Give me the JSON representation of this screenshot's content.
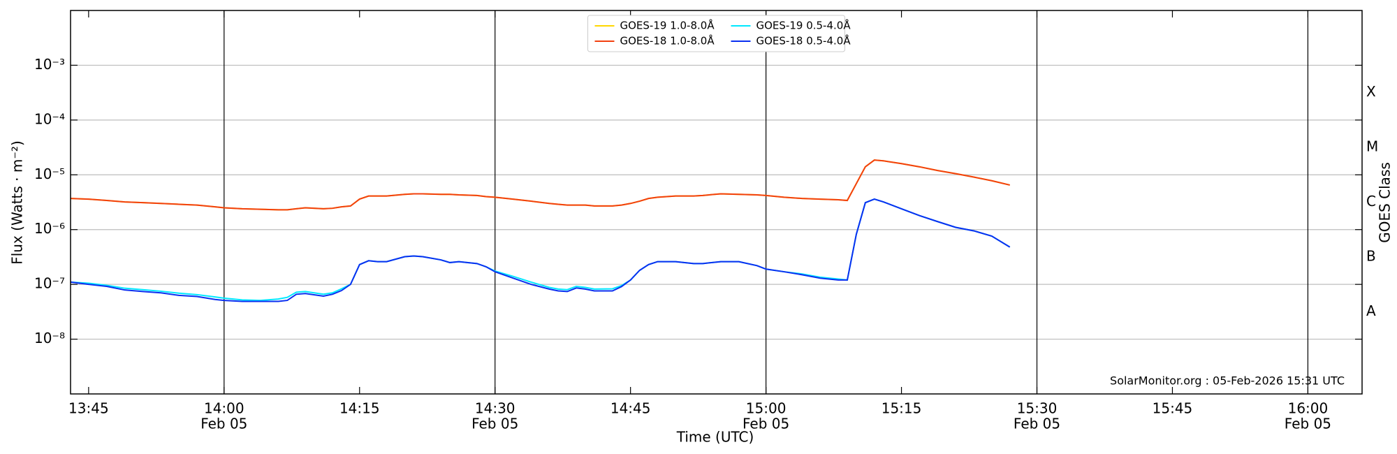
{
  "chart_data": {
    "type": "line",
    "xlabel": "Time (UTC)",
    "ylabel": "Flux (Watts · m⁻²)",
    "y2label": "GOES Class",
    "annotation": "SolarMonitor.org : 05-Feb-2026 15:31 UTC",
    "log_y": true,
    "grid": true,
    "legend": "upper center",
    "xlim": [
      "13:43",
      "16:06"
    ],
    "xticks": [
      "13:45",
      {
        "value": "14:00",
        "date": "Feb 05"
      },
      "14:15",
      {
        "value": "14:30",
        "date": "Feb 05"
      },
      "14:45",
      {
        "value": "15:00",
        "date": "Feb 05"
      },
      "15:15",
      {
        "value": "15:30",
        "date": "Feb 05"
      },
      "15:45",
      {
        "value": "16:00",
        "date": "Feb 05"
      }
    ],
    "ylim": [
      1e-09,
      0.01
    ],
    "yticks": [
      {
        "value": 1e-08,
        "label": "10⁻⁸"
      },
      {
        "value": 1e-07,
        "label": "10⁻⁷"
      },
      {
        "value": 1e-06,
        "label": "10⁻⁶"
      },
      {
        "value": 1e-05,
        "label": "10⁻⁵"
      },
      {
        "value": 0.0001,
        "label": "10⁻⁴"
      },
      {
        "value": 0.001,
        "label": "10⁻³"
      }
    ],
    "y2lim": [
      1e-09,
      0.01
    ],
    "y2ticks": [
      {
        "value": 3.16e-08,
        "label": "A"
      },
      {
        "value": 3.16e-07,
        "label": "B"
      },
      {
        "value": 3.16e-06,
        "label": "C"
      },
      {
        "value": 3.16e-05,
        "label": "M"
      },
      {
        "value": 0.000316,
        "label": "X"
      }
    ],
    "x": [
      "13:43",
      "13:45",
      "13:47",
      "13:49",
      "13:51",
      "13:53",
      "13:55",
      "13:57",
      "13:59",
      "14:00",
      "14:02",
      "14:04",
      "14:06",
      "14:07",
      "14:08",
      "14:09",
      "14:11",
      "14:12",
      "14:13",
      "14:14",
      "14:15",
      "14:16",
      "14:17",
      "14:18",
      "14:20",
      "14:21",
      "14:22",
      "14:24",
      "14:25",
      "14:26",
      "14:28",
      "14:29",
      "14:30",
      "14:32",
      "14:34",
      "14:36",
      "14:37",
      "14:38",
      "14:39",
      "14:40",
      "14:41",
      "14:43",
      "14:44",
      "14:45",
      "14:46",
      "14:47",
      "14:48",
      "14:50",
      "14:52",
      "14:53",
      "14:55",
      "14:57",
      "14:59",
      "15:00",
      "15:02",
      "15:04",
      "15:06",
      "15:08",
      "15:09",
      "15:10",
      "15:11",
      "15:12",
      "15:13",
      "15:15",
      "15:17",
      "15:19",
      "15:21",
      "15:23",
      "15:25",
      "15:27"
    ],
    "series": [
      {
        "name": "GOES-19 1.0-8.0Å",
        "color": "#ffd700",
        "values": [
          3.7e-06,
          3.6e-06,
          3.4e-06,
          3.2e-06,
          3.1e-06,
          3e-06,
          2.9e-06,
          2.8e-06,
          2.6e-06,
          2.5e-06,
          2.4e-06,
          2.35e-06,
          2.3e-06,
          2.3e-06,
          2.4e-06,
          2.5e-06,
          2.4e-06,
          2.45e-06,
          2.6e-06,
          2.7e-06,
          3.6e-06,
          4.1e-06,
          4.1e-06,
          4.1e-06,
          4.4e-06,
          4.5e-06,
          4.5e-06,
          4.4e-06,
          4.4e-06,
          4.3e-06,
          4.2e-06,
          4e-06,
          3.9e-06,
          3.6e-06,
          3.3e-06,
          3e-06,
          2.9e-06,
          2.8e-06,
          2.8e-06,
          2.8e-06,
          2.7e-06,
          2.7e-06,
          2.8e-06,
          3e-06,
          3.3e-06,
          3.7e-06,
          3.9e-06,
          4.1e-06,
          4.1e-06,
          4.2e-06,
          4.5e-06,
          4.4e-06,
          4.3e-06,
          4.2e-06,
          3.9e-06,
          3.7e-06,
          3.6e-06,
          3.5e-06,
          3.4e-06,
          6.9e-06,
          1.4e-05,
          1.86e-05,
          1.8e-05,
          1.6e-05,
          1.4e-05,
          1.2e-05,
          1.05e-05,
          9.1e-06,
          7.8e-06,
          6.5e-06
        ]
      },
      {
        "name": "GOES-18 1.0-8.0Å",
        "color": "#f2400f",
        "values": [
          3.7e-06,
          3.6e-06,
          3.4e-06,
          3.2e-06,
          3.1e-06,
          3e-06,
          2.9e-06,
          2.8e-06,
          2.6e-06,
          2.5e-06,
          2.4e-06,
          2.35e-06,
          2.3e-06,
          2.3e-06,
          2.4e-06,
          2.5e-06,
          2.4e-06,
          2.45e-06,
          2.6e-06,
          2.7e-06,
          3.6e-06,
          4.1e-06,
          4.1e-06,
          4.1e-06,
          4.4e-06,
          4.5e-06,
          4.5e-06,
          4.4e-06,
          4.4e-06,
          4.3e-06,
          4.2e-06,
          4e-06,
          3.9e-06,
          3.6e-06,
          3.3e-06,
          3e-06,
          2.9e-06,
          2.8e-06,
          2.8e-06,
          2.8e-06,
          2.7e-06,
          2.7e-06,
          2.8e-06,
          3e-06,
          3.3e-06,
          3.7e-06,
          3.9e-06,
          4.1e-06,
          4.1e-06,
          4.2e-06,
          4.5e-06,
          4.4e-06,
          4.3e-06,
          4.2e-06,
          3.9e-06,
          3.7e-06,
          3.6e-06,
          3.5e-06,
          3.4e-06,
          6.9e-06,
          1.4e-05,
          1.86e-05,
          1.8e-05,
          1.6e-05,
          1.4e-05,
          1.2e-05,
          1.05e-05,
          9.1e-06,
          7.8e-06,
          6.5e-06
        ]
      },
      {
        "name": "GOES-19 0.5-4.0Å",
        "color": "#00e8ff",
        "values": [
          1.1e-07,
          1.05e-07,
          9.6e-08,
          8.5e-08,
          8e-08,
          7.5e-08,
          6.9e-08,
          6.5e-08,
          5.9e-08,
          5.6e-08,
          5.2e-08,
          5.1e-08,
          5.4e-08,
          5.8e-08,
          7.2e-08,
          7.4e-08,
          6.6e-08,
          7e-08,
          8.3e-08,
          1e-07,
          2.3e-07,
          2.7e-07,
          2.6e-07,
          2.6e-07,
          3.2e-07,
          3.3e-07,
          3.2e-07,
          2.8e-07,
          2.5e-07,
          2.6e-07,
          2.4e-07,
          2.1e-07,
          1.75e-07,
          1.4e-07,
          1.1e-07,
          8.8e-08,
          8.2e-08,
          8e-08,
          9.2e-08,
          8.8e-08,
          8.2e-08,
          8.3e-08,
          9.5e-08,
          1.2e-07,
          1.8e-07,
          2.3e-07,
          2.6e-07,
          2.6e-07,
          2.4e-07,
          2.4e-07,
          2.6e-07,
          2.6e-07,
          2.2e-07,
          1.9e-07,
          1.7e-07,
          1.55e-07,
          1.35e-07,
          1.25e-07,
          1.2e-07,
          8.2e-07,
          3.1e-06,
          3.6e-06,
          3.2e-06,
          2.4e-06,
          1.8e-06,
          1.4e-06,
          1.1e-06,
          9.5e-07,
          7.6e-07,
          4.8e-07
        ]
      },
      {
        "name": "GOES-18 0.5-4.0Å",
        "color": "#0a2ff0",
        "values": [
          1.1e-07,
          1e-07,
          9.2e-08,
          7.9e-08,
          7.4e-08,
          7e-08,
          6.3e-08,
          6e-08,
          5.3e-08,
          5.1e-08,
          4.9e-08,
          4.9e-08,
          4.9e-08,
          5.1e-08,
          6.6e-08,
          6.8e-08,
          6.1e-08,
          6.6e-08,
          7.7e-08,
          1e-07,
          2.3e-07,
          2.7e-07,
          2.6e-07,
          2.6e-07,
          3.2e-07,
          3.3e-07,
          3.2e-07,
          2.8e-07,
          2.5e-07,
          2.6e-07,
          2.4e-07,
          2.1e-07,
          1.7e-07,
          1.3e-07,
          1e-07,
          8.2e-08,
          7.6e-08,
          7.4e-08,
          8.6e-08,
          8.2e-08,
          7.6e-08,
          7.6e-08,
          9.1e-08,
          1.2e-07,
          1.8e-07,
          2.3e-07,
          2.6e-07,
          2.6e-07,
          2.4e-07,
          2.4e-07,
          2.6e-07,
          2.6e-07,
          2.2e-07,
          1.9e-07,
          1.7e-07,
          1.5e-07,
          1.3e-07,
          1.2e-07,
          1.2e-07,
          8.2e-07,
          3.1e-06,
          3.6e-06,
          3.2e-06,
          2.4e-06,
          1.8e-06,
          1.4e-06,
          1.1e-06,
          9.5e-07,
          7.6e-07,
          4.8e-07
        ]
      }
    ]
  }
}
